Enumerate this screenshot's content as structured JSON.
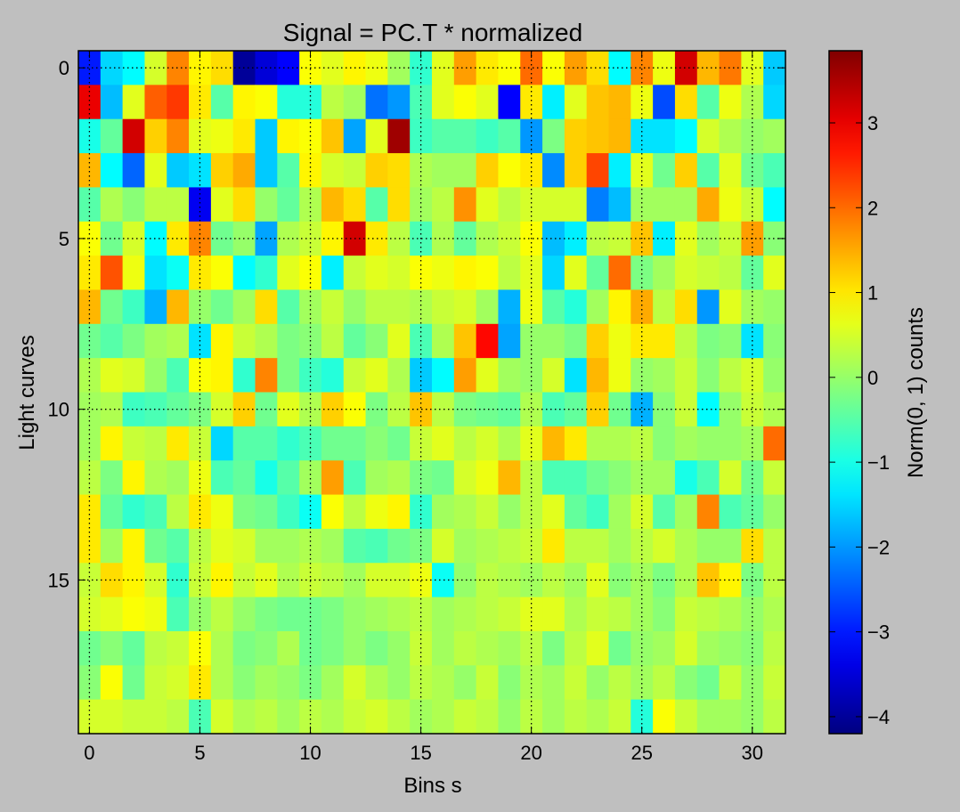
{
  "figure": {
    "background": "#bfbfbf"
  },
  "chart_data": {
    "type": "heatmap",
    "title": "Signal = PC.T * normalized",
    "xlabel": "Bins s",
    "ylabel": "Light curves",
    "colorbar_label": "Norm(0, 1) counts",
    "colormap": "jet",
    "vmin": -4.2,
    "vmax": 3.85,
    "grid": true,
    "x_ticks": [
      0,
      5,
      10,
      15,
      20,
      25,
      30
    ],
    "y_ticks": [
      0,
      5,
      10,
      15
    ],
    "colorbar_ticks": [
      -4,
      -3,
      -2,
      -1,
      0,
      1,
      2,
      3
    ],
    "x_range": [
      -0.5,
      31.5
    ],
    "y_range": [
      -0.5,
      19.5
    ],
    "n_cols": 32,
    "n_rows": 20,
    "values": [
      [
        -3.0,
        -1.5,
        -1.2,
        0.5,
        1.8,
        0.9,
        1.1,
        -4.0,
        -3.5,
        -3.2,
        0.8,
        0.6,
        0.9,
        0.7,
        0.1,
        -0.8,
        0.6,
        1.6,
        1.0,
        0.8,
        2.0,
        0.8,
        1.6,
        1.1,
        -1.2,
        1.8,
        0.7,
        3.2,
        1.4,
        1.9,
        0.6,
        -1.6
      ],
      [
        3.0,
        -1.7,
        0.6,
        2.1,
        2.4,
        1.0,
        -0.5,
        0.9,
        0.8,
        -0.9,
        -0.9,
        0.3,
        0.1,
        -2.3,
        -2.0,
        -0.6,
        0.6,
        0.8,
        0.6,
        -3.2,
        1.0,
        -1.3,
        0.6,
        1.3,
        1.4,
        0.7,
        -2.6,
        1.1,
        -0.5,
        0.7,
        0.2,
        -1.5
      ],
      [
        -1.0,
        -0.4,
        3.2,
        1.2,
        1.8,
        0.6,
        0.7,
        1.0,
        -1.6,
        0.9,
        0.8,
        1.3,
        -1.9,
        0.6,
        3.6,
        -0.7,
        -0.5,
        -0.5,
        -0.7,
        -0.5,
        -2.0,
        -0.2,
        1.2,
        1.3,
        1.4,
        -1.4,
        -1.4,
        -1.2,
        0.5,
        0.2,
        0.0,
        0.1
      ],
      [
        1.4,
        -1.2,
        -2.4,
        0.6,
        -1.6,
        -1.4,
        1.2,
        1.5,
        -1.6,
        -0.5,
        0.9,
        0.5,
        0.4,
        1.2,
        1.1,
        0.2,
        0.1,
        0.1,
        1.2,
        0.8,
        1.0,
        -2.1,
        1.2,
        2.3,
        -1.3,
        0.6,
        -0.3,
        1.2,
        -0.5,
        0.6,
        -0.3,
        -0.6
      ],
      [
        -0.5,
        0.2,
        -0.1,
        0.3,
        0.3,
        -3.3,
        0.6,
        1.1,
        0.0,
        -0.4,
        0.2,
        1.4,
        1.1,
        -0.5,
        1.1,
        0.1,
        0.3,
        1.7,
        0.6,
        0.3,
        0.5,
        0.5,
        0.5,
        -2.2,
        -1.7,
        0.1,
        0.1,
        0.1,
        1.5,
        0.7,
        0.4,
        -1.2
      ],
      [
        0.8,
        -0.3,
        0.5,
        -1.2,
        1.0,
        1.8,
        -0.3,
        0.0,
        -1.9,
        0.2,
        0.4,
        0.9,
        3.2,
        1.0,
        0.3,
        -0.6,
        0.2,
        -0.4,
        0.2,
        0.4,
        0.8,
        -1.7,
        -1.3,
        0.3,
        0.4,
        1.3,
        -1.3,
        0.6,
        0.1,
        0.4,
        1.6,
        -0.1
      ],
      [
        1.0,
        2.2,
        0.7,
        -1.4,
        -1.1,
        1.0,
        0.8,
        -1.2,
        -0.8,
        0.6,
        0.8,
        -1.3,
        0.4,
        0.6,
        0.5,
        0.8,
        0.7,
        0.9,
        0.8,
        0.3,
        0.6,
        -1.5,
        0.6,
        -0.4,
        2.0,
        -0.2,
        0.1,
        0.5,
        0.4,
        0.3,
        -0.4,
        0.6
      ],
      [
        1.4,
        -0.3,
        -0.7,
        -1.8,
        1.4,
        0.0,
        -0.3,
        0.1,
        1.1,
        -0.5,
        0.1,
        0.4,
        0.0,
        0.3,
        0.3,
        0.2,
        0.4,
        0.5,
        0.1,
        -1.8,
        0.7,
        -0.5,
        -0.9,
        0.1,
        0.9,
        1.5,
        0.3,
        1.1,
        -2.0,
        0.6,
        0.1,
        0.0
      ],
      [
        -0.3,
        -0.5,
        -0.2,
        0.1,
        0.2,
        -1.4,
        0.9,
        0.4,
        0.2,
        -0.2,
        -0.1,
        0.3,
        -0.4,
        -0.1,
        0.6,
        -0.6,
        0.2,
        1.3,
        2.8,
        -1.9,
        0.0,
        0.0,
        -0.2,
        1.2,
        0.7,
        1.0,
        1.0,
        0.3,
        -0.2,
        -0.1,
        -1.4,
        -0.1
      ],
      [
        0.2,
        0.6,
        0.5,
        0.0,
        -0.6,
        0.8,
        0.9,
        -0.8,
        1.8,
        -0.2,
        -0.7,
        -0.9,
        0.4,
        0.6,
        0.2,
        -1.6,
        -1.2,
        1.6,
        0.6,
        0.1,
        0.0,
        0.5,
        -1.4,
        1.4,
        0.7,
        0.0,
        0.1,
        0.4,
        -0.1,
        0.3,
        0.5,
        0.0
      ],
      [
        0.1,
        0.2,
        -0.7,
        -0.6,
        -0.4,
        -0.2,
        0.5,
        1.2,
        -0.3,
        0.6,
        0.2,
        1.2,
        0.8,
        -0.2,
        0.3,
        1.3,
        0.3,
        -0.2,
        -0.3,
        -0.4,
        0.2,
        -0.6,
        -0.4,
        1.2,
        -0.3,
        -1.8,
        -0.1,
        0.4,
        -1.2,
        0.0,
        0.4,
        0.2
      ],
      [
        0.1,
        0.9,
        0.4,
        0.3,
        1.0,
        0.4,
        -1.5,
        -0.5,
        -0.5,
        -0.8,
        -0.6,
        -0.3,
        -0.3,
        -0.1,
        -0.3,
        0.4,
        0.6,
        0.3,
        0.5,
        0.2,
        0.6,
        1.4,
        1.0,
        0.2,
        0.2,
        0.3,
        -0.1,
        0.1,
        0.0,
        0.0,
        0.1,
        2.0
      ],
      [
        0.3,
        -0.2,
        0.9,
        0.2,
        0.1,
        0.7,
        -0.6,
        -0.4,
        -1.0,
        -0.5,
        0.1,
        1.6,
        -0.6,
        0.1,
        0.2,
        -0.2,
        -0.3,
        0.5,
        0.7,
        1.4,
        0.3,
        -0.6,
        -0.6,
        -0.3,
        -0.1,
        0.1,
        0.1,
        -1.0,
        -0.6,
        0.5,
        -0.3,
        0.4
      ],
      [
        1.0,
        -0.4,
        -0.8,
        -0.6,
        0.3,
        1.0,
        0.7,
        -0.2,
        -0.3,
        -0.7,
        -1.1,
        0.8,
        0.3,
        0.7,
        0.9,
        -0.8,
        0.1,
        0.2,
        0.4,
        0.0,
        0.3,
        0.6,
        -0.4,
        -0.7,
        0.1,
        0.5,
        -0.5,
        0.1,
        1.8,
        -0.6,
        -0.4,
        0.0
      ],
      [
        1.0,
        0.1,
        0.9,
        -0.3,
        -0.5,
        0.3,
        0.6,
        0.5,
        0.1,
        0.1,
        0.2,
        0.1,
        -0.5,
        -0.6,
        -0.3,
        -0.2,
        0.5,
        0.1,
        0.2,
        0.3,
        0.4,
        1.0,
        0.3,
        0.3,
        0.1,
        0.3,
        0.5,
        0.2,
        0.0,
        0.0,
        1.1,
        0.3
      ],
      [
        0.4,
        1.1,
        0.9,
        0.5,
        -0.8,
        0.4,
        0.9,
        0.4,
        0.6,
        0.2,
        0.4,
        0.3,
        0.1,
        0.5,
        0.5,
        0.7,
        -1.1,
        0.0,
        0.3,
        0.2,
        0.1,
        0.3,
        0.1,
        0.6,
        -0.1,
        0.1,
        -0.2,
        0.2,
        1.3,
        0.9,
        -0.2,
        0.3
      ],
      [
        0.5,
        0.6,
        0.8,
        0.7,
        -0.6,
        0.0,
        0.3,
        0.0,
        -0.2,
        -0.3,
        -0.3,
        -0.2,
        0.0,
        0.1,
        0.2,
        0.3,
        0.1,
        0.2,
        0.3,
        0.4,
        0.6,
        0.6,
        0.2,
        0.4,
        0.3,
        0.1,
        -0.1,
        0.4,
        0.3,
        0.2,
        0.0,
        0.2
      ],
      [
        -0.3,
        -0.1,
        -0.4,
        0.3,
        0.4,
        0.8,
        0.2,
        -0.2,
        -0.1,
        0.2,
        -0.3,
        -0.2,
        0.0,
        -0.2,
        0.0,
        0.4,
        0.1,
        0.3,
        0.2,
        0.1,
        0.3,
        -0.2,
        0.3,
        0.6,
        -0.3,
        0.0,
        0.1,
        0.5,
        0.1,
        0.0,
        -0.1,
        0.3
      ],
      [
        -0.1,
        0.8,
        -0.3,
        0.4,
        0.5,
        1.0,
        0.2,
        -0.1,
        0.1,
        0.0,
        -0.2,
        0.1,
        0.5,
        0.2,
        0.0,
        0.3,
        0.2,
        0.0,
        0.4,
        -0.1,
        0.2,
        0.1,
        0.4,
        0.0,
        0.3,
        0.1,
        0.3,
        -0.1,
        -0.3,
        0.4,
        0.0,
        0.4
      ],
      [
        0.5,
        0.5,
        0.4,
        0.4,
        0.3,
        -0.6,
        0.5,
        0.2,
        0.3,
        0.1,
        0.3,
        0.2,
        0.4,
        0.5,
        0.3,
        0.1,
        0.2,
        0.4,
        0.3,
        0.0,
        0.3,
        0.1,
        0.3,
        0.2,
        0.4,
        -0.9,
        0.8,
        0.4,
        0.1,
        0.1,
        0.0,
        0.3
      ]
    ]
  }
}
